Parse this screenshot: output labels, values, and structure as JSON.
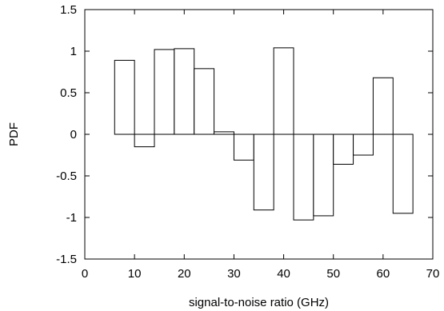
{
  "chart_data": {
    "type": "bar",
    "title": "",
    "xlabel": "signal-to-noise ratio (GHz)",
    "ylabel": "PDF",
    "xlim": [
      0,
      70
    ],
    "ylim": [
      -1.5,
      1.5
    ],
    "xticks": [
      0,
      10,
      20,
      30,
      40,
      50,
      60,
      70
    ],
    "yticks": [
      -1.5,
      -1,
      -0.5,
      0,
      0.5,
      1,
      1.5
    ],
    "xtick_labels": [
      "0",
      "10",
      "20",
      "30",
      "40",
      "50",
      "60",
      "70"
    ],
    "ytick_labels": [
      "-1.5",
      "-1",
      "-0.5",
      "0",
      "0.5",
      "1",
      "1.5"
    ],
    "bar_width": 4,
    "x": [
      8,
      12,
      16,
      20,
      24,
      28,
      32,
      36,
      40,
      44,
      48,
      52,
      56,
      60,
      64
    ],
    "values": [
      0.89,
      -0.15,
      1.02,
      1.03,
      0.79,
      0.03,
      -0.31,
      -0.91,
      1.04,
      -1.03,
      -0.98,
      -0.36,
      -0.25,
      0.68,
      -0.95
    ],
    "grid": false,
    "zero_line": true,
    "colors": {
      "bar_fill": "#ffffff",
      "bar_stroke": "#000000",
      "axis": "#000000"
    }
  }
}
